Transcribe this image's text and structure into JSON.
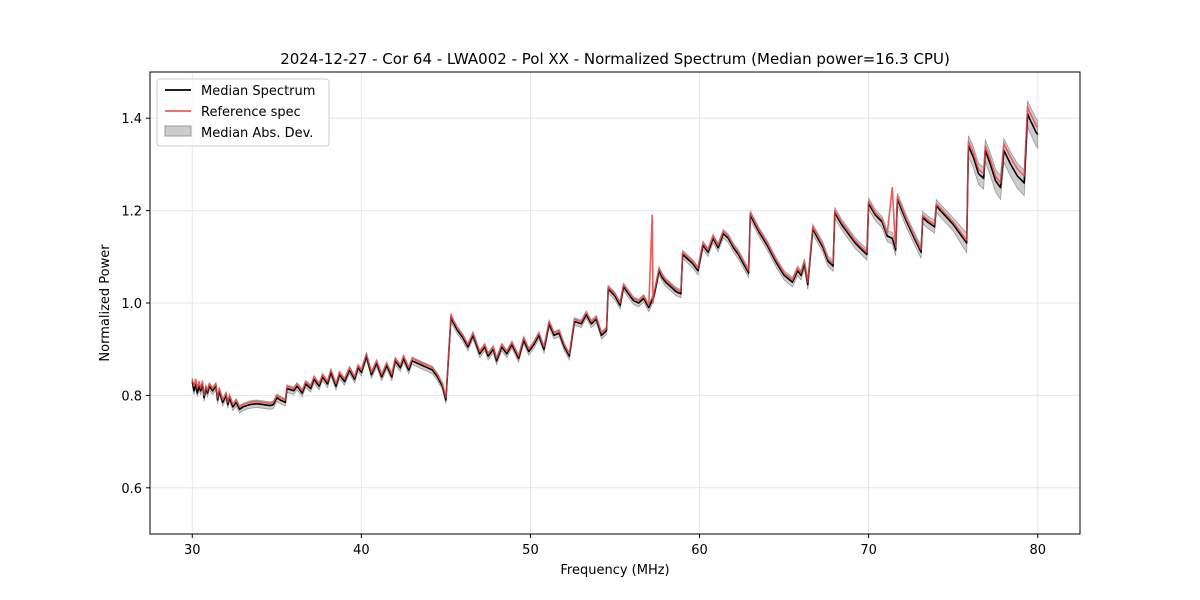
{
  "chart_data": {
    "type": "line",
    "title": "2024-12-27 - Cor 64 - LWA002 - Pol XX - Normalized Spectrum (Median power=16.3 CPU)",
    "xlabel": "Frequency (MHz)",
    "ylabel": "Normalized Power",
    "xlim": [
      27.5,
      82.5
    ],
    "ylim": [
      0.5,
      1.5
    ],
    "xticks": [
      30,
      40,
      50,
      60,
      70,
      80
    ],
    "yticks": [
      0.6,
      0.8,
      1.0,
      1.2,
      1.4
    ],
    "grid": true,
    "legend_position": "top-left",
    "legend": {
      "median": "Median Spectrum",
      "reference": "Reference spec",
      "mad": "Median Abs. Dev."
    },
    "colors": {
      "median": "#000000",
      "reference": "#f05a5a",
      "mad_fill": "#cccccc",
      "mad_edge": "#999999",
      "grid": "#e6e6e6"
    },
    "series": [
      {
        "name": "Median Spectrum",
        "x": [
          30.0,
          30.1,
          30.2,
          30.3,
          30.4,
          30.5,
          30.6,
          30.7,
          30.8,
          30.9,
          31.0,
          31.2,
          31.4,
          31.5,
          31.6,
          31.8,
          32.0,
          32.1,
          32.2,
          32.4,
          32.6,
          32.8,
          33.0,
          33.4,
          33.8,
          34.2,
          34.6,
          34.8,
          35.0,
          35.2,
          35.5,
          35.6,
          36.0,
          36.2,
          36.5,
          36.7,
          37.0,
          37.2,
          37.5,
          37.7,
          38.0,
          38.2,
          38.5,
          38.7,
          39.0,
          39.3,
          39.6,
          39.8,
          40.0,
          40.3,
          40.6,
          40.9,
          41.2,
          41.5,
          41.8,
          42.0,
          42.3,
          42.5,
          42.8,
          43.0,
          43.3,
          43.6,
          43.9,
          44.2,
          44.5,
          44.8,
          45.0,
          45.3,
          45.4,
          45.7,
          46.0,
          46.3,
          46.6,
          47.0,
          47.3,
          47.5,
          47.8,
          48.0,
          48.3,
          48.6,
          48.9,
          49.3,
          49.6,
          49.9,
          50.2,
          50.5,
          50.8,
          51.1,
          51.4,
          51.7,
          52.0,
          52.3,
          52.6,
          53.0,
          53.3,
          53.6,
          53.9,
          54.2,
          54.5,
          54.6,
          55.0,
          55.3,
          55.5,
          55.8,
          56.1,
          56.4,
          56.7,
          57.0,
          57.3,
          57.6,
          57.8,
          58.0,
          58.3,
          58.6,
          58.9,
          59.0,
          59.3,
          59.6,
          59.9,
          60.2,
          60.5,
          60.8,
          61.1,
          61.4,
          61.7,
          62.0,
          62.3,
          62.6,
          62.9,
          63.0,
          63.5,
          64.0,
          64.5,
          65.0,
          65.5,
          65.8,
          66.0,
          66.2,
          66.4,
          66.7,
          67.0,
          67.3,
          67.6,
          67.9,
          68.0,
          68.4,
          68.8,
          69.2,
          69.6,
          69.9,
          70.0,
          70.4,
          70.8,
          71.1,
          71.4,
          71.6,
          71.7,
          72.2,
          72.7,
          73.1,
          73.2,
          73.5,
          73.9,
          74.0,
          74.5,
          75.0,
          75.5,
          75.8,
          75.9,
          76.2,
          76.5,
          76.8,
          76.9,
          77.2,
          77.5,
          77.8,
          78.0,
          78.4,
          78.8,
          79.2,
          79.4,
          79.5,
          79.7,
          79.9,
          80.0
        ],
        "y": [
          0.83,
          0.81,
          0.825,
          0.805,
          0.82,
          0.81,
          0.825,
          0.795,
          0.815,
          0.805,
          0.82,
          0.81,
          0.82,
          0.79,
          0.81,
          0.785,
          0.8,
          0.78,
          0.795,
          0.775,
          0.785,
          0.77,
          0.775,
          0.78,
          0.782,
          0.78,
          0.778,
          0.78,
          0.795,
          0.79,
          0.785,
          0.815,
          0.81,
          0.82,
          0.805,
          0.825,
          0.815,
          0.835,
          0.82,
          0.84,
          0.825,
          0.85,
          0.82,
          0.845,
          0.83,
          0.855,
          0.835,
          0.86,
          0.85,
          0.885,
          0.845,
          0.87,
          0.84,
          0.865,
          0.84,
          0.875,
          0.86,
          0.88,
          0.855,
          0.875,
          0.87,
          0.865,
          0.86,
          0.855,
          0.84,
          0.82,
          0.79,
          0.97,
          0.96,
          0.94,
          0.925,
          0.905,
          0.93,
          0.89,
          0.905,
          0.885,
          0.9,
          0.875,
          0.905,
          0.89,
          0.91,
          0.88,
          0.92,
          0.895,
          0.91,
          0.93,
          0.9,
          0.955,
          0.93,
          0.935,
          0.905,
          0.885,
          0.96,
          0.955,
          0.975,
          0.955,
          0.965,
          0.93,
          0.94,
          1.03,
          1.015,
          0.995,
          1.035,
          1.02,
          1.005,
          1.0,
          1.01,
          0.99,
          1.015,
          1.07,
          1.055,
          1.045,
          1.035,
          1.025,
          1.02,
          1.105,
          1.095,
          1.085,
          1.07,
          1.125,
          1.11,
          1.14,
          1.12,
          1.15,
          1.14,
          1.12,
          1.105,
          1.085,
          1.065,
          1.19,
          1.155,
          1.125,
          1.09,
          1.06,
          1.045,
          1.07,
          1.06,
          1.085,
          1.04,
          1.16,
          1.14,
          1.12,
          1.09,
          1.08,
          1.195,
          1.17,
          1.15,
          1.13,
          1.115,
          1.105,
          1.215,
          1.19,
          1.175,
          1.145,
          1.14,
          1.115,
          1.225,
          1.18,
          1.14,
          1.11,
          1.185,
          1.175,
          1.165,
          1.21,
          1.19,
          1.17,
          1.145,
          1.13,
          1.34,
          1.315,
          1.28,
          1.27,
          1.33,
          1.3,
          1.265,
          1.25,
          1.33,
          1.3,
          1.275,
          1.26,
          1.41,
          1.4,
          1.385,
          1.37,
          1.365
        ]
      },
      {
        "name": "Reference spec",
        "x": [
          30.0,
          30.1,
          30.2,
          30.3,
          30.4,
          30.5,
          30.6,
          30.7,
          30.8,
          30.9,
          31.0,
          31.2,
          31.4,
          31.5,
          31.6,
          31.8,
          32.0,
          32.1,
          32.2,
          32.4,
          32.6,
          32.8,
          33.0,
          33.4,
          33.8,
          34.2,
          34.6,
          34.8,
          35.0,
          35.2,
          35.5,
          35.6,
          36.0,
          36.2,
          36.5,
          36.7,
          37.0,
          37.2,
          37.5,
          37.7,
          38.0,
          38.2,
          38.5,
          38.7,
          39.0,
          39.3,
          39.6,
          39.8,
          40.0,
          40.3,
          40.6,
          40.9,
          41.2,
          41.5,
          41.8,
          42.0,
          42.3,
          42.5,
          42.8,
          43.0,
          43.3,
          43.6,
          43.9,
          44.2,
          44.5,
          44.8,
          45.0,
          45.3,
          45.4,
          45.7,
          46.0,
          46.3,
          46.6,
          47.0,
          47.3,
          47.5,
          47.8,
          48.0,
          48.3,
          48.6,
          48.9,
          49.3,
          49.6,
          49.9,
          50.2,
          50.5,
          50.8,
          51.1,
          51.4,
          51.7,
          52.0,
          52.3,
          52.6,
          53.0,
          53.3,
          53.6,
          53.9,
          54.2,
          54.5,
          54.6,
          55.0,
          55.3,
          55.5,
          55.8,
          56.1,
          56.4,
          56.7,
          57.0,
          57.2,
          57.25,
          57.3,
          57.6,
          57.8,
          58.0,
          58.3,
          58.6,
          58.9,
          59.0,
          59.3,
          59.6,
          59.9,
          60.2,
          60.5,
          60.8,
          61.1,
          61.4,
          61.7,
          62.0,
          62.3,
          62.6,
          62.9,
          63.0,
          63.5,
          64.0,
          64.5,
          65.0,
          65.5,
          65.8,
          66.0,
          66.2,
          66.4,
          66.7,
          67.0,
          67.3,
          67.6,
          67.9,
          68.0,
          68.4,
          68.8,
          69.2,
          69.6,
          69.9,
          70.0,
          70.4,
          70.8,
          71.1,
          71.4,
          71.55,
          71.6,
          71.7,
          72.2,
          72.7,
          73.1,
          73.2,
          73.5,
          73.9,
          74.0,
          74.5,
          75.0,
          75.5,
          75.8,
          75.9,
          76.2,
          76.5,
          76.8,
          76.9,
          77.2,
          77.5,
          77.8,
          78.0,
          78.4,
          78.8,
          79.2,
          79.4,
          79.5,
          79.7,
          79.9,
          80.0
        ],
        "y": [
          0.835,
          0.82,
          0.835,
          0.815,
          0.83,
          0.815,
          0.83,
          0.8,
          0.82,
          0.81,
          0.825,
          0.815,
          0.825,
          0.795,
          0.815,
          0.79,
          0.805,
          0.785,
          0.8,
          0.78,
          0.79,
          0.775,
          0.78,
          0.785,
          0.787,
          0.785,
          0.783,
          0.785,
          0.8,
          0.795,
          0.79,
          0.82,
          0.815,
          0.825,
          0.81,
          0.83,
          0.82,
          0.84,
          0.825,
          0.845,
          0.83,
          0.855,
          0.825,
          0.85,
          0.835,
          0.86,
          0.84,
          0.865,
          0.855,
          0.89,
          0.85,
          0.875,
          0.845,
          0.87,
          0.845,
          0.88,
          0.865,
          0.885,
          0.86,
          0.88,
          0.875,
          0.87,
          0.865,
          0.86,
          0.845,
          0.825,
          0.795,
          0.975,
          0.965,
          0.945,
          0.93,
          0.91,
          0.935,
          0.895,
          0.91,
          0.89,
          0.905,
          0.88,
          0.91,
          0.895,
          0.915,
          0.885,
          0.925,
          0.9,
          0.915,
          0.935,
          0.905,
          0.96,
          0.935,
          0.94,
          0.91,
          0.89,
          0.965,
          0.96,
          0.98,
          0.96,
          0.97,
          0.935,
          0.945,
          1.035,
          1.02,
          1.0,
          1.04,
          1.025,
          1.01,
          1.005,
          1.015,
          0.995,
          1.19,
          1.0,
          1.02,
          1.075,
          1.06,
          1.05,
          1.04,
          1.03,
          1.025,
          1.11,
          1.1,
          1.09,
          1.075,
          1.13,
          1.115,
          1.145,
          1.125,
          1.155,
          1.145,
          1.125,
          1.11,
          1.09,
          1.07,
          1.195,
          1.16,
          1.13,
          1.095,
          1.065,
          1.05,
          1.075,
          1.065,
          1.09,
          1.045,
          1.165,
          1.145,
          1.125,
          1.095,
          1.085,
          1.2,
          1.175,
          1.155,
          1.135,
          1.12,
          1.11,
          1.22,
          1.195,
          1.18,
          1.15,
          1.25,
          1.145,
          1.12,
          1.23,
          1.185,
          1.145,
          1.115,
          1.19,
          1.18,
          1.17,
          1.215,
          1.195,
          1.175,
          1.15,
          1.135,
          1.35,
          1.325,
          1.29,
          1.28,
          1.34,
          1.31,
          1.275,
          1.26,
          1.345,
          1.315,
          1.29,
          1.275,
          1.425,
          1.415,
          1.4,
          1.385,
          1.38
        ]
      }
    ],
    "mad_halfwidth": {
      "x": [
        30,
        40,
        45,
        50,
        55,
        60,
        65,
        70,
        75,
        75.9,
        79.4,
        80
      ],
      "y": [
        0.008,
        0.008,
        0.008,
        0.008,
        0.008,
        0.009,
        0.01,
        0.012,
        0.014,
        0.022,
        0.028,
        0.03
      ]
    }
  }
}
